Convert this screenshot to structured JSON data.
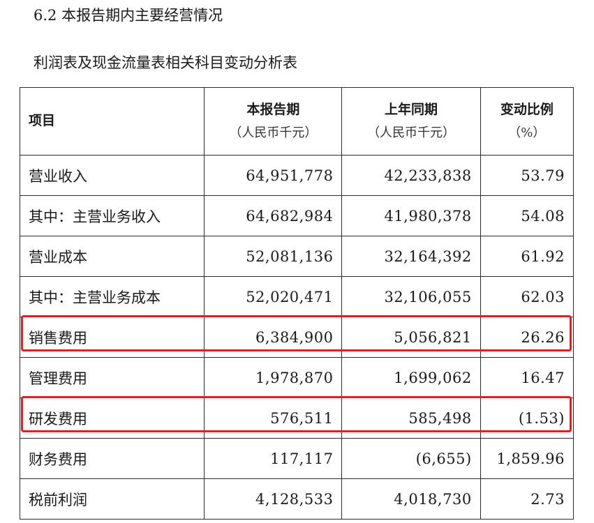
{
  "section_title": "6.2 本报告期内主要经营情况",
  "table_title": "利润表及现金流量表相关科目变动分析表",
  "table": {
    "headers": {
      "item": "项目",
      "current": "本报告期",
      "current_unit": "（人民币千元）",
      "previous": "上年同期",
      "previous_unit": "（人民币千元）",
      "change": "变动比例",
      "change_unit": "（%）"
    },
    "rows": [
      {
        "item": "营业收入",
        "current": "64,951,778",
        "previous": "42,233,838",
        "change": "53.79"
      },
      {
        "item": "其中：主营业务收入",
        "current": "64,682,984",
        "previous": "41,980,378",
        "change": "54.08"
      },
      {
        "item": "营业成本",
        "current": "52,081,136",
        "previous": "32,164,392",
        "change": "61.92"
      },
      {
        "item": "其中：主营业务成本",
        "current": "52,020,471",
        "previous": "32,106,055",
        "change": "62.03"
      },
      {
        "item": "销售费用",
        "current": "6,384,900",
        "previous": "5,056,821",
        "change": "26.26"
      },
      {
        "item": "管理费用",
        "current": "1,978,870",
        "previous": "1,699,062",
        "change": "16.47"
      },
      {
        "item": "研发费用",
        "current": "576,511",
        "previous": "585,498",
        "change": "(1.53)"
      },
      {
        "item": "财务费用",
        "current": "117,117",
        "previous": "(6,655)",
        "change": "1,859.96"
      },
      {
        "item": "税前利润",
        "current": "4,128,533",
        "previous": "4,018,730",
        "change": "2.73"
      }
    ]
  },
  "highlight_color": "#e31e24"
}
